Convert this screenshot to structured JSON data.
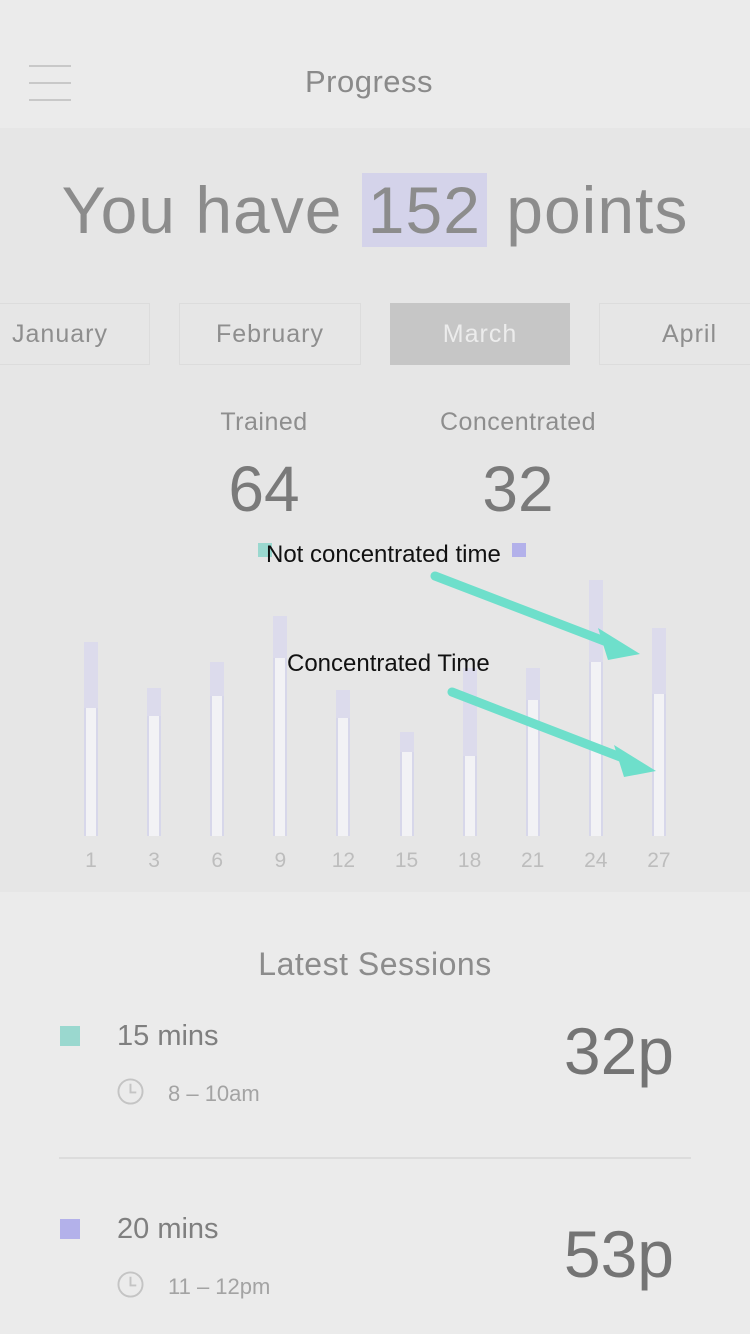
{
  "nav": {
    "title": "Progress"
  },
  "headline": {
    "prefix": "You have ",
    "points": "152",
    "suffix": " points"
  },
  "months": {
    "items": [
      "January",
      "February",
      "March",
      "April"
    ],
    "selected": "March"
  },
  "stats": {
    "trained_label": "Trained",
    "trained_value": "64",
    "concentrated_label": "Concentrated",
    "concentrated_value": "32"
  },
  "annotations": {
    "not_concentrated": "Not concentrated time",
    "concentrated": "Concentrated Time"
  },
  "colors": {
    "trained": "#9ad8cf",
    "concentrated": "#b3b1ea",
    "arrow": "#6edfcb",
    "highlight": "#d4d3ea"
  },
  "chart_data": {
    "type": "bar",
    "categories": [
      "1",
      "3",
      "6",
      "9",
      "12",
      "15",
      "18",
      "21",
      "24",
      "27"
    ],
    "series": [
      {
        "name": "Concentrated Time",
        "values": [
          128,
          120,
          140,
          178,
          118,
          84,
          80,
          136,
          174,
          142
        ]
      },
      {
        "name": "Not concentrated time",
        "values": [
          66,
          28,
          34,
          42,
          28,
          20,
          88,
          32,
          82,
          66
        ]
      }
    ],
    "ylim": [
      0,
      260
    ]
  },
  "sessions": {
    "title": "Latest Sessions",
    "items": [
      {
        "duration": "15 mins",
        "time": "8 – 10am",
        "points": "32p",
        "color": "#9ad8cf"
      },
      {
        "duration": "20 mins",
        "time": "11 – 12pm",
        "points": "53p",
        "color": "#b3b1ea"
      }
    ]
  }
}
